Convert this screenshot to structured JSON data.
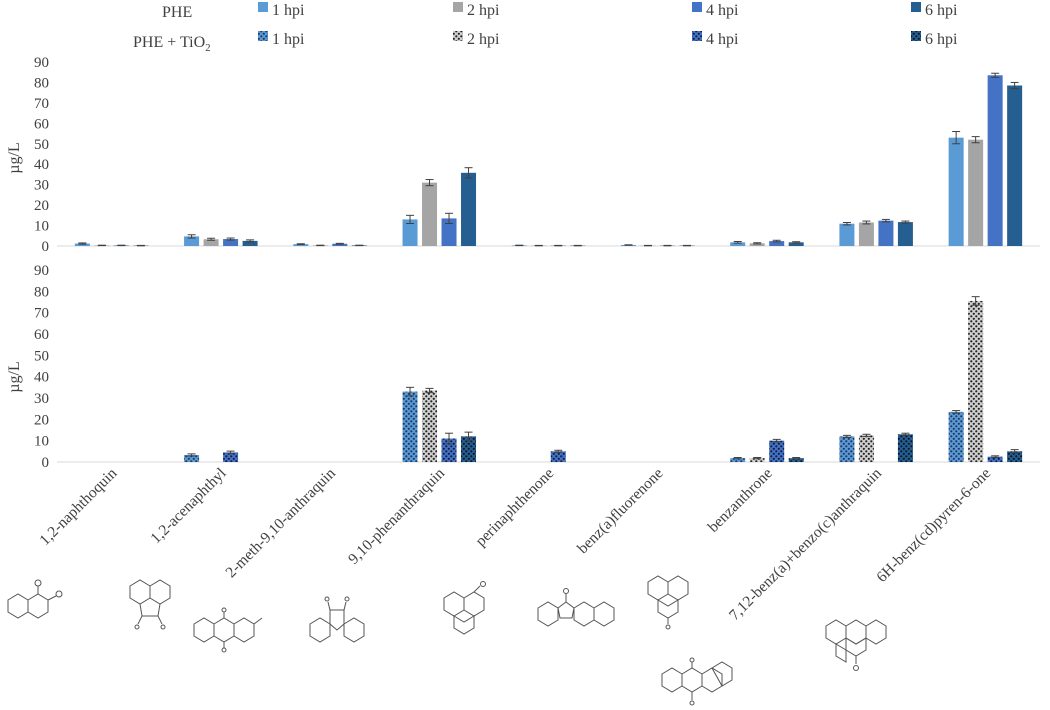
{
  "colors": {
    "1 hpi": "#5B9BD5",
    "2 hpi": "#A5A5A5",
    "4 hpi": "#4472C4",
    "6 hpi": "#255E91",
    "axis": "#D9D9D9",
    "text": "#404040",
    "error": "#404040"
  },
  "legend": {
    "group_labels": [
      "PHE",
      "PHE + TiO"
    ],
    "subscript": "2",
    "series": [
      "1 hpi",
      "2 hpi",
      "4 hpi",
      "6 hpi"
    ]
  },
  "chart_data": [
    {
      "type": "bar",
      "name": "PHE",
      "ylabel": "µg/L",
      "ylim": [
        0,
        90
      ],
      "yticks": [
        0,
        10,
        20,
        30,
        40,
        50,
        60,
        70,
        80,
        90
      ],
      "categories": [
        "1,2-naphthoquin",
        "1,2-acenaphthyl",
        "2-meth-9,10-anthraquin",
        "9,10-phenanthraquin",
        "perinaphthenone",
        "benz(a)fluorenone",
        "benzanthrone",
        "7,12-benz(a)+benzo(c)anthraquin",
        "6H-benz(cd)pyren-6-one"
      ],
      "series": [
        {
          "name": "1 hpi",
          "pattern": "solid",
          "values": [
            1.2,
            4.7,
            0.9,
            13.0,
            0.3,
            0.5,
            1.8,
            10.9,
            53.0
          ],
          "errors": [
            0.3,
            0.8,
            0.2,
            2.0,
            0.1,
            0.1,
            0.4,
            0.6,
            3.0
          ]
        },
        {
          "name": "2 hpi",
          "pattern": "solid",
          "values": [
            0.3,
            3.3,
            0.3,
            31.0,
            0.2,
            0.2,
            1.3,
            11.5,
            52.0
          ],
          "errors": [
            0.1,
            0.5,
            0.1,
            1.5,
            0.1,
            0.1,
            0.3,
            0.7,
            1.5
          ]
        },
        {
          "name": "4 hpi",
          "pattern": "solid",
          "values": [
            0.3,
            3.4,
            1.1,
            13.5,
            0.2,
            0.2,
            2.4,
            12.4,
            83.5
          ],
          "errors": [
            0.1,
            0.5,
            0.2,
            2.5,
            0.1,
            0.1,
            0.4,
            0.6,
            1.0
          ]
        },
        {
          "name": "6 hpi",
          "pattern": "solid",
          "values": [
            0.2,
            2.5,
            0.3,
            35.8,
            0.2,
            0.2,
            1.8,
            11.7,
            78.5
          ],
          "errors": [
            0.1,
            0.5,
            0.1,
            2.5,
            0.1,
            0.1,
            0.3,
            0.5,
            1.5
          ]
        }
      ]
    },
    {
      "type": "bar",
      "name": "PHE + TiO2",
      "ylabel": "µg/L",
      "ylim": [
        0,
        90
      ],
      "yticks": [
        0,
        10,
        20,
        30,
        40,
        50,
        60,
        70,
        80,
        90
      ],
      "categories": [
        "1,2-naphthoquin",
        "1,2-acenaphthyl",
        "2-meth-9,10-anthraquin",
        "9,10-phenanthraquin",
        "perinaphthenone",
        "benz(a)fluorenone",
        "benzanthrone",
        "7,12-benz(a)+benzo(c)anthraquin",
        "6H-benz(cd)pyren-6-one"
      ],
      "series": [
        {
          "name": "1 hpi",
          "pattern": "dotted",
          "values": [
            0,
            3.3,
            0,
            33.0,
            0,
            0,
            1.8,
            12.0,
            23.5
          ],
          "errors": [
            0,
            0.5,
            0,
            2.0,
            0,
            0,
            0.3,
            0.5,
            0.6
          ]
        },
        {
          "name": "2 hpi",
          "pattern": "dotted",
          "values": [
            0,
            0,
            0,
            33.5,
            0,
            0,
            1.8,
            12.5,
            75.5
          ],
          "errors": [
            0,
            0,
            0,
            1.0,
            0,
            0,
            0.3,
            0.5,
            2.0
          ]
        },
        {
          "name": "4 hpi",
          "pattern": "dotted",
          "values": [
            0,
            4.5,
            0,
            11.0,
            5.0,
            0,
            10.0,
            0,
            2.5
          ],
          "errors": [
            0,
            0.6,
            0,
            2.5,
            0.5,
            0,
            0.6,
            0,
            0.4
          ]
        },
        {
          "name": "6 hpi",
          "pattern": "dotted",
          "values": [
            0,
            0,
            0,
            12.0,
            0,
            0,
            1.8,
            13.0,
            5.0
          ],
          "errors": [
            0,
            0,
            0,
            2.0,
            0,
            0,
            0.3,
            0.5,
            0.8
          ]
        }
      ]
    }
  ]
}
